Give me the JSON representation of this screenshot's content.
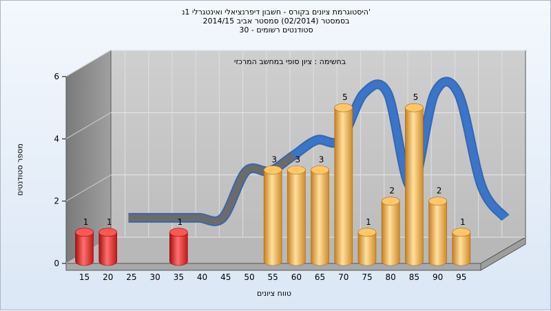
{
  "chart_data": {
    "type": "bar",
    "title_lines": [
      "היסטוגרמת ציונים בקורס - חשבון דיפרנציאלי ואינטגרלי 1נ'",
      "בסמסטר  (02/2014)  סמסטר אביב 2014/15",
      "סטודנטים רשומים - 30"
    ],
    "subtitle": "בחשימה : ציון סופי במחשב המרכזי",
    "xlabel": "טווח ציונים",
    "ylabel": "מספר סטודנטים",
    "x_ticks": [
      "15",
      "20",
      "25",
      "30",
      "35",
      "40",
      "45",
      "50",
      "55",
      "60",
      "65",
      "70",
      "75",
      "80",
      "85",
      "90",
      "95"
    ],
    "y_ticks": [
      "0",
      "2",
      "4",
      "6"
    ],
    "ylim": [
      0,
      6
    ],
    "bars": [
      {
        "x": 15,
        "value": 1,
        "color": "red"
      },
      {
        "x": 20,
        "value": 1,
        "color": "red"
      },
      {
        "x": 35,
        "value": 1,
        "color": "red"
      },
      {
        "x": 55,
        "value": 3,
        "color": "orange"
      },
      {
        "x": 60,
        "value": 3,
        "color": "orange"
      },
      {
        "x": 65,
        "value": 3,
        "color": "orange"
      },
      {
        "x": 70,
        "value": 5,
        "color": "orange"
      },
      {
        "x": 75,
        "value": 1,
        "color": "orange"
      },
      {
        "x": 80,
        "value": 2,
        "color": "orange"
      },
      {
        "x": 85,
        "value": 5,
        "color": "orange"
      },
      {
        "x": 90,
        "value": 2,
        "color": "orange"
      },
      {
        "x": 95,
        "value": 1,
        "color": "orange"
      }
    ],
    "trend_line": {
      "x": [
        20,
        25,
        30,
        35,
        40,
        45,
        50,
        55,
        60,
        65,
        70,
        75,
        80,
        85,
        90,
        95,
        100
      ],
      "values": [
        1,
        1,
        1,
        1,
        1,
        2.5,
        2.5,
        3,
        3.5,
        3.5,
        5,
        5,
        2,
        5,
        5,
        2,
        1
      ],
      "colors": {
        "positive": "#3a75c8",
        "negative": "#6b6b6b"
      }
    },
    "colors": {
      "red_bar": "#e02020",
      "orange_bar": "#f0a030",
      "wall": "#c4c4c4",
      "side_wall": "#8c8c8c"
    }
  }
}
